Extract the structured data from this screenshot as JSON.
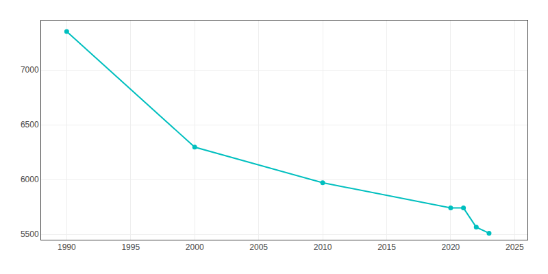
{
  "chart_data": {
    "type": "line",
    "x": [
      1990,
      2000,
      2010,
      2020,
      2021,
      2022,
      2023
    ],
    "values": [
      7350,
      6295,
      5970,
      5740,
      5740,
      5565,
      5510
    ],
    "color": "#00BFBF",
    "marker": "circle",
    "xlim": [
      1988,
      2026
    ],
    "ylim": [
      5450,
      7450
    ],
    "xticks": [
      1990,
      1995,
      2000,
      2005,
      2010,
      2015,
      2020,
      2025
    ],
    "yticks": [
      5500,
      6000,
      6500,
      7000
    ],
    "grid": true
  }
}
